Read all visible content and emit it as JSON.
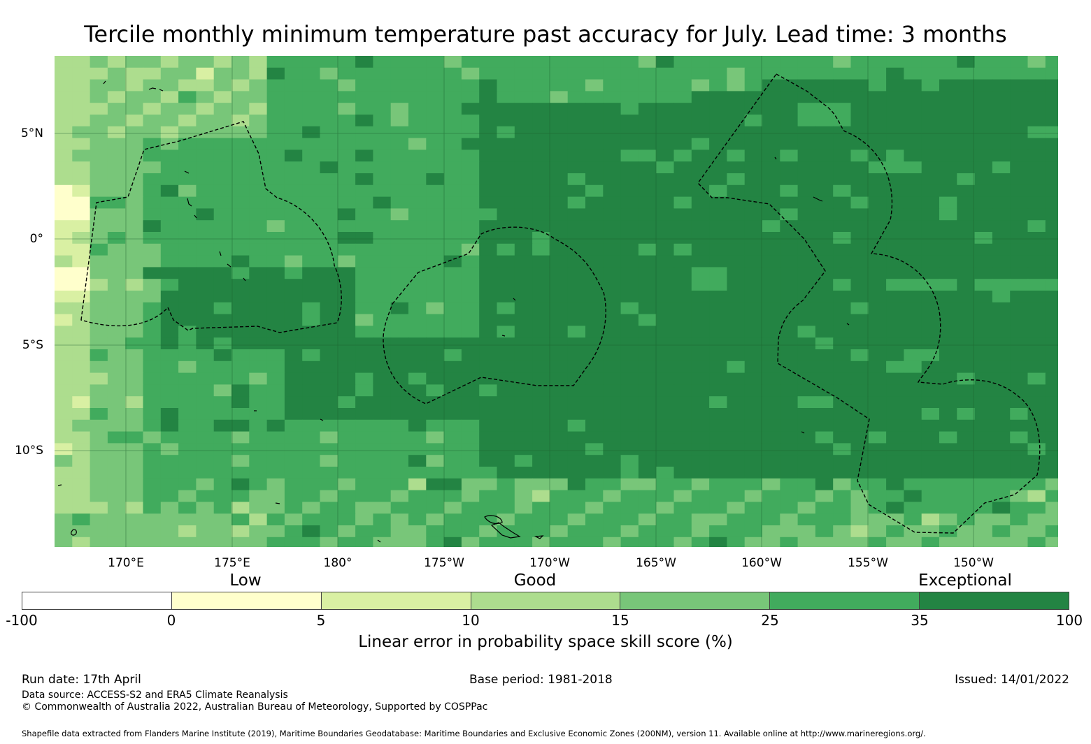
{
  "title": "Tercile monthly minimum temperature past accuracy for July. Lead time: 3 months",
  "map": {
    "latitude_labels": [
      "5°N",
      "0°",
      "5°S",
      "10°S"
    ],
    "longitude_labels": [
      "170°E",
      "175°E",
      "180°",
      "175°W",
      "170°W",
      "165°W",
      "160°W",
      "155°W",
      "150°W"
    ],
    "lat_range": [
      -14.5,
      8.5
    ],
    "lon_range": [
      166.6,
      213.9
    ]
  },
  "legend": {
    "category_labels": [
      "Low",
      "Good",
      "Exceptional"
    ],
    "ticks": [
      "-100",
      "0",
      "5",
      "10",
      "15",
      "25",
      "35",
      "100"
    ],
    "colors": [
      "#ffffff",
      "#ffffcc",
      "#d9f0a3",
      "#addd8e",
      "#78c679",
      "#41ab5d",
      "#238443"
    ],
    "label": "Linear error in probability space skill score (%)"
  },
  "footer": {
    "run_date": "Run date: 17th April",
    "base_period": "Base period: 1981-2018",
    "issued": "Issued: 14/01/2022",
    "data_source": "Data source: ACCESS-S2 and ERA5 Climate Reanalysis",
    "copyright": "© Commonwealth of Australia 2022, Australian Bureau of Meteorology, Supported by COSPPac",
    "shapefile": "Shapefile data extracted from Flanders Marine Institute (2019), Maritime Boundaries Geodatabase: Maritime Boundaries and Exclusive Economic Zones (200NM), version 11. Available online at http://www.marineregions.org/."
  }
}
